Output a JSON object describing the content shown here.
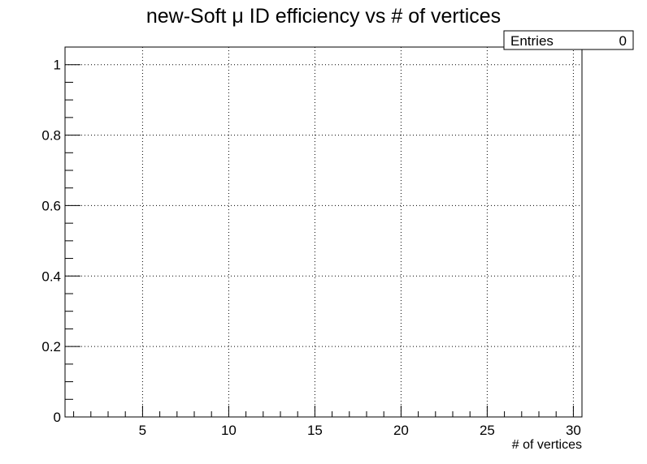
{
  "chart_data": {
    "type": "scatter",
    "title": "new-Soft μ ID efficiency vs # of vertices",
    "xlabel": "# of vertices",
    "ylabel": "",
    "xlim": [
      0.5,
      30.5
    ],
    "ylim": [
      0,
      1.05
    ],
    "x_ticks": [
      5,
      10,
      15,
      20,
      25,
      30
    ],
    "x_tick_labels": [
      "5",
      "10",
      "15",
      "20",
      "25",
      "30"
    ],
    "y_ticks": [
      0,
      0.2,
      0.4,
      0.6,
      0.8,
      1
    ],
    "y_tick_labels": [
      "0",
      "0.2",
      "0.4",
      "0.6",
      "0.8",
      "1"
    ],
    "grid": true,
    "series": [],
    "stats_box": {
      "label": "Entries",
      "value": "0",
      "placement": "top-right"
    }
  }
}
